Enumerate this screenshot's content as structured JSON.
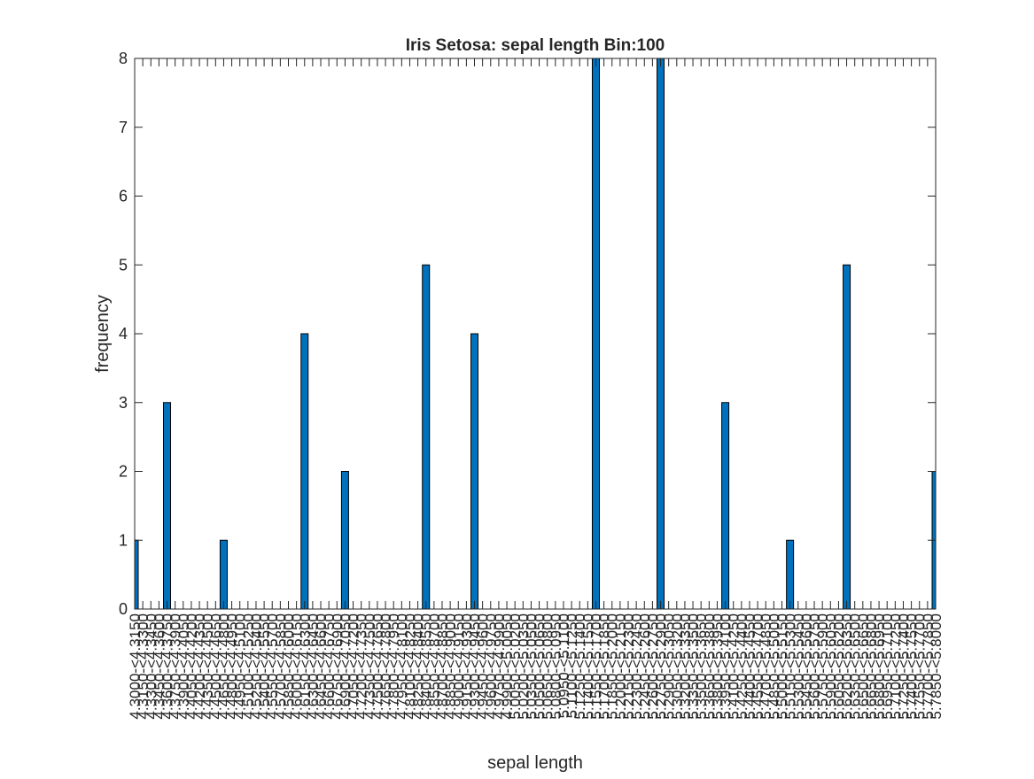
{
  "chart_data": {
    "type": "bar",
    "title": "Iris Setosa: sepal length Bin:100",
    "xlabel": "sepal length",
    "ylabel": "frequency",
    "ylim": [
      0,
      8
    ],
    "y_ticks": [
      0,
      1,
      2,
      3,
      4,
      5,
      6,
      7,
      8
    ],
    "grid": false,
    "bin_start": 4.3,
    "bin_width": 0.015,
    "bin_count": 100,
    "categories": [
      "4.3000-<4.3150",
      "4.3150-<4.3300",
      "4.3300-<4.3450",
      "4.3450-<4.3600",
      "4.3600-<4.3750",
      "4.3750-<4.3900",
      "4.3900-<4.4050",
      "4.4050-<4.4200",
      "4.4200-<4.4350",
      "4.4350-<4.4500",
      "4.4500-<4.4650",
      "4.4650-<4.4800",
      "4.4800-<4.4950",
      "4.4950-<4.5100",
      "4.5100-<4.5250",
      "4.5250-<4.5400",
      "4.5400-<4.5550",
      "4.5550-<4.5700",
      "4.5700-<4.5850",
      "4.5850-<4.6000",
      "4.6000-<4.6150",
      "4.6150-<4.6300",
      "4.6300-<4.6450",
      "4.6450-<4.6600",
      "4.6600-<4.6750",
      "4.6750-<4.6900",
      "4.6900-<4.7050",
      "4.7050-<4.7200",
      "4.7200-<4.7350",
      "4.7350-<4.7500",
      "4.7500-<4.7650",
      "4.7650-<4.7800",
      "4.7800-<4.7950",
      "4.7950-<4.8100",
      "4.8100-<4.8250",
      "4.8250-<4.8400",
      "4.8400-<4.8550",
      "4.8550-<4.8700",
      "4.8700-<4.8850",
      "4.8850-<4.9000",
      "4.9000-<4.9150",
      "4.9150-<4.9300",
      "4.9300-<4.9450",
      "4.9450-<4.9600",
      "4.9600-<4.9750",
      "4.9750-<4.9900",
      "4.9900-<5.0050",
      "5.0050-<5.0200",
      "5.0200-<5.0350",
      "5.0350-<5.0500",
      "5.0500-<5.0650",
      "5.0650-<5.0800",
      "5.0800-<5.0950",
      "5.0950-<5.1100",
      "5.1100-<5.1250",
      "5.1250-<5.1400",
      "5.1400-<5.1550",
      "5.1550-<5.1700",
      "5.1700-<5.1850",
      "5.1850-<5.2000",
      "5.2000-<5.2150",
      "5.2150-<5.2300",
      "5.2300-<5.2450",
      "5.2450-<5.2600",
      "5.2600-<5.2750",
      "5.2750-<5.2900",
      "5.2900-<5.3050",
      "5.3050-<5.3200",
      "5.3200-<5.3350",
      "5.3350-<5.3500",
      "5.3500-<5.3650",
      "5.3650-<5.3800",
      "5.3800-<5.3950",
      "5.3950-<5.4100",
      "5.4100-<5.4250",
      "5.4250-<5.4400",
      "5.4400-<5.4550",
      "5.4550-<5.4700",
      "5.4700-<5.4850",
      "5.4850-<5.5000",
      "5.5000-<5.5150",
      "5.5150-<5.5300",
      "5.5300-<5.5450",
      "5.5450-<5.5600",
      "5.5600-<5.5750",
      "5.5750-<5.5900",
      "5.5900-<5.6050",
      "5.6050-<5.6200",
      "5.6200-<5.6350",
      "5.6350-<5.6500",
      "5.6500-<5.6650",
      "5.6650-<5.6800",
      "5.6800-<5.6950",
      "5.6950-<5.7100",
      "5.7100-<5.7250",
      "5.7250-<5.7400",
      "5.7400-<5.7550",
      "5.7550-<5.7700",
      "5.7700-<5.7850",
      "5.7850-<5.8000"
    ],
    "values": [
      1,
      0,
      0,
      0,
      3,
      0,
      0,
      0,
      0,
      0,
      0,
      1,
      0,
      0,
      0,
      0,
      0,
      0,
      0,
      0,
      0,
      4,
      0,
      0,
      0,
      0,
      2,
      0,
      0,
      0,
      0,
      0,
      0,
      0,
      0,
      0,
      5,
      0,
      0,
      0,
      0,
      0,
      4,
      0,
      0,
      0,
      0,
      0,
      0,
      0,
      0,
      0,
      0,
      0,
      0,
      0,
      0,
      8,
      0,
      0,
      0,
      0,
      0,
      0,
      0,
      8,
      0,
      0,
      0,
      0,
      0,
      0,
      0,
      3,
      0,
      0,
      0,
      0,
      0,
      0,
      0,
      1,
      0,
      0,
      0,
      0,
      0,
      0,
      5,
      0,
      0,
      0,
      0,
      0,
      0,
      0,
      0,
      0,
      0,
      2
    ],
    "bar_color": "#0072BD",
    "bar_edge_color": "#000000",
    "axis_color": "#262626"
  }
}
